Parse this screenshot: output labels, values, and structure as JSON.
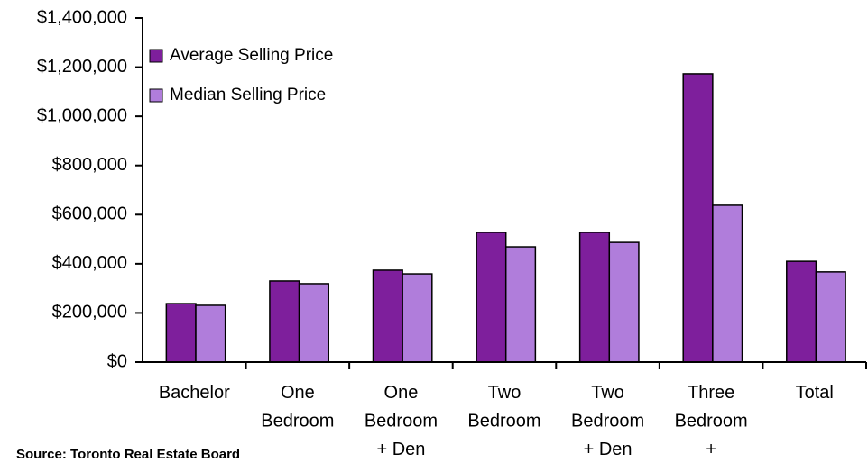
{
  "chart_data": {
    "type": "bar",
    "categories": [
      "Bachelor",
      "One\nBedroom",
      "One\nBedroom\n+ Den",
      "Two\nBedroom",
      "Two\nBedroom\n+ Den",
      "Three\nBedroom\n+",
      "Total"
    ],
    "series": [
      {
        "name": "Average Selling Price",
        "color": "#7e1f9c",
        "values": [
          238000,
          330000,
          374000,
          528000,
          528000,
          1173000,
          410000
        ]
      },
      {
        "name": "Median Selling Price",
        "color": "#b07ddb",
        "values": [
          231000,
          319000,
          359000,
          469000,
          487000,
          638000,
          367000
        ]
      }
    ],
    "ylim": [
      0,
      1400000
    ],
    "yticks": [
      {
        "value": 0,
        "label": "$0"
      },
      {
        "value": 200000,
        "label": "$200,000"
      },
      {
        "value": 400000,
        "label": "$400,000"
      },
      {
        "value": 600000,
        "label": "$600,000"
      },
      {
        "value": 800000,
        "label": "$800,000"
      },
      {
        "value": 1000000,
        "label": "$1,000,000"
      },
      {
        "value": 1200000,
        "label": "$1,200,000"
      },
      {
        "value": 1400000,
        "label": "$1,400,000"
      }
    ],
    "legend": "upper left",
    "annotation": "Source: Toronto Real Estate Board"
  }
}
